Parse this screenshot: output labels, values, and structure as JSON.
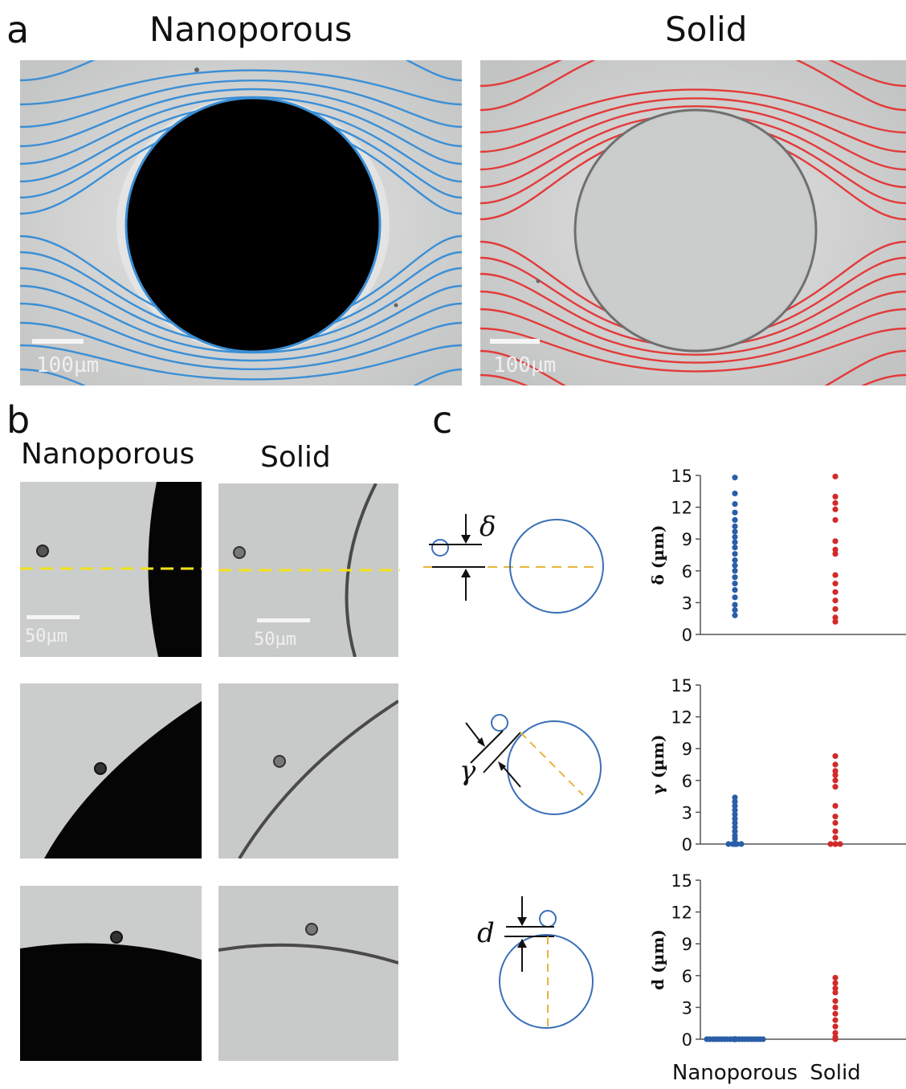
{
  "panel_a": {
    "letter": "a",
    "titles": [
      "Nanoporous",
      "Solid"
    ],
    "scale_bar": "100µm",
    "colors": {
      "nanoporous": "#3a8fd6",
      "solid": "#e33a3a"
    }
  },
  "panel_b": {
    "letter": "b",
    "titles": [
      "Nanoporous",
      "Solid"
    ],
    "scale_bar": "50µm"
  },
  "panel_c": {
    "letter": "c",
    "symbols": {
      "delta": "δ",
      "gamma": "γ",
      "d": "d"
    }
  },
  "chart_data": [
    {
      "type": "scatter",
      "ylabel": "δ (µm)",
      "ylim": [
        0,
        15
      ],
      "yticks": [
        0,
        3,
        6,
        9,
        12,
        15
      ],
      "categories": [
        "Nanoporous",
        "Solid"
      ],
      "series": [
        {
          "category": "Nanoporous",
          "color": "#2a5ea8",
          "values": [
            1.8,
            2.3,
            2.8,
            3.5,
            4.2,
            4.8,
            5.4,
            6.0,
            6.5,
            7.0,
            7.6,
            8.2,
            8.7,
            9.2,
            9.7,
            10.2,
            10.8,
            11.5,
            12.3,
            13.3,
            14.8
          ]
        },
        {
          "category": "Solid",
          "color": "#d22a2a",
          "values": [
            1.2,
            1.6,
            2.4,
            3.2,
            4.0,
            4.8,
            5.6,
            7.6,
            8.0,
            8.8,
            10.8,
            11.8,
            12.4,
            13.0,
            14.9
          ]
        }
      ]
    },
    {
      "type": "scatter",
      "ylabel": "γ (µm)",
      "ylim": [
        0,
        15
      ],
      "yticks": [
        0,
        3,
        6,
        9,
        12,
        15
      ],
      "categories": [
        "Nanoporous",
        "Solid"
      ],
      "series": [
        {
          "category": "Nanoporous",
          "color": "#2a5ea8",
          "values": [
            0,
            0,
            0,
            0,
            0.5,
            0.8,
            1.2,
            1.6,
            2.0,
            2.4,
            2.8,
            3.2,
            3.6,
            4.0,
            4.4
          ]
        },
        {
          "category": "Solid",
          "color": "#d22a2a",
          "values": [
            0,
            0,
            0,
            0.6,
            1.2,
            2.0,
            2.6,
            3.6,
            5.4,
            6.0,
            6.5,
            6.9,
            7.5,
            8.3
          ]
        }
      ]
    },
    {
      "type": "scatter",
      "ylabel": "d (µm)",
      "ylim": [
        0,
        15
      ],
      "yticks": [
        0,
        3,
        6,
        9,
        12,
        15
      ],
      "categories": [
        "Nanoporous",
        "Solid"
      ],
      "series": [
        {
          "category": "Nanoporous",
          "color": "#2a5ea8",
          "values": [
            0,
            0,
            0,
            0,
            0,
            0,
            0,
            0,
            0,
            0,
            0,
            0,
            0,
            0,
            0,
            0,
            0,
            0,
            0,
            0
          ]
        },
        {
          "category": "Solid",
          "color": "#d22a2a",
          "values": [
            0,
            0.2,
            0.6,
            1.2,
            1.8,
            2.4,
            3.0,
            3.6,
            4.4,
            4.8,
            5.3,
            5.8
          ]
        }
      ]
    }
  ]
}
